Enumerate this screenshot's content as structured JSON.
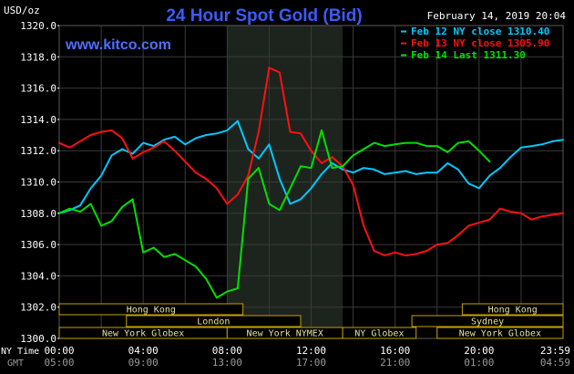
{
  "header": {
    "units": "USD/oz",
    "title": "24 Hour Spot Gold (Bid)",
    "date": "February 14, 2019 20:04",
    "website": "www.kitco.com"
  },
  "colors": {
    "background": "#000000",
    "grid": "#3a3a3a",
    "highlight_band": "#1d241d",
    "title": "#3b5bff",
    "website": "#4f70ff",
    "axis_text": "#ffffff",
    "sub_axis_text": "#9a9a9a",
    "market_bar_fill": "#000000",
    "market_bar_stroke": "#c8a000",
    "market_text": "#e6e0a0"
  },
  "time_labels": {
    "row1_label": "NY Time",
    "row2_label": "GMT"
  },
  "chart_data": {
    "type": "line",
    "title": "24 Hour Spot Gold (Bid)",
    "ylabel": "USD/oz",
    "ylim": [
      1300.0,
      1320.0
    ],
    "xlim": [
      0,
      24
    ],
    "yticks": [
      "1300.0",
      "1302.0",
      "1304.0",
      "1306.0",
      "1308.0",
      "1310.0",
      "1312.0",
      "1314.0",
      "1316.0",
      "1318.0",
      "1320.0"
    ],
    "xticks_ny": [
      "00:00",
      "04:00",
      "08:00",
      "12:00",
      "16:00",
      "20:00",
      "23:59"
    ],
    "xticks_gmt": [
      "05:00",
      "09:00",
      "13:00",
      "17:00",
      "21:00",
      "01:00",
      "04:59"
    ],
    "xtick_positions": [
      0,
      4,
      8,
      12,
      16,
      20,
      24
    ],
    "highlight_range": [
      8.0,
      13.5
    ],
    "grid": true,
    "legend_position": "top-right",
    "series": [
      {
        "name": "Feb 12 NY close 1310.40",
        "color": "#00c8ff",
        "x": [
          0,
          0.5,
          1.0,
          1.5,
          2.0,
          2.5,
          3.0,
          3.5,
          4.0,
          4.5,
          5.0,
          5.5,
          6.0,
          6.5,
          7.0,
          7.5,
          8.0,
          8.5,
          9.0,
          9.5,
          10.0,
          10.5,
          11.0,
          11.5,
          12.0,
          12.5,
          13.0,
          13.5,
          14.0,
          14.5,
          15.0,
          15.5,
          16.0,
          16.5,
          17.0,
          17.5,
          18.0,
          18.5,
          19.0,
          19.5,
          20.0,
          20.5,
          21.0,
          21.5,
          22.0,
          22.5,
          23.0,
          23.5,
          24.0
        ],
        "values": [
          1308.0,
          1308.2,
          1308.5,
          1309.6,
          1310.4,
          1311.7,
          1312.1,
          1311.8,
          1312.5,
          1312.3,
          1312.7,
          1312.9,
          1312.4,
          1312.8,
          1313.0,
          1313.1,
          1313.3,
          1313.9,
          1312.1,
          1311.5,
          1312.4,
          1310.2,
          1308.6,
          1308.9,
          1309.6,
          1310.5,
          1311.2,
          1310.8,
          1310.6,
          1310.9,
          1310.8,
          1310.5,
          1310.6,
          1310.7,
          1310.5,
          1310.6,
          1310.6,
          1311.2,
          1310.8,
          1309.9,
          1309.6,
          1310.4,
          1310.9,
          1311.6,
          1312.2,
          1312.3,
          1312.4,
          1312.6,
          1312.7
        ]
      },
      {
        "name": "Feb 13 NY close 1305.90",
        "color": "#ff1010",
        "x": [
          0,
          0.5,
          1.0,
          1.5,
          2.0,
          2.5,
          3.0,
          3.5,
          4.0,
          4.5,
          5.0,
          5.5,
          6.0,
          6.5,
          7.0,
          7.5,
          8.0,
          8.5,
          9.0,
          9.5,
          10.0,
          10.5,
          11.0,
          11.5,
          12.0,
          12.5,
          13.0,
          13.5,
          14.0,
          14.5,
          15.0,
          15.5,
          16.0,
          16.5,
          17.0,
          17.5,
          18.0,
          18.5,
          19.0,
          19.5,
          20.0,
          20.5,
          21.0,
          21.5,
          22.0,
          22.5,
          23.0,
          23.5,
          24.0
        ],
        "values": [
          1312.5,
          1312.2,
          1312.6,
          1313.0,
          1313.2,
          1313.3,
          1312.8,
          1311.5,
          1311.9,
          1312.2,
          1312.6,
          1312.0,
          1311.3,
          1310.6,
          1310.2,
          1309.6,
          1308.6,
          1309.2,
          1310.4,
          1313.2,
          1317.3,
          1317.0,
          1313.2,
          1313.1,
          1312.0,
          1311.2,
          1311.6,
          1311.0,
          1309.8,
          1307.2,
          1305.6,
          1305.3,
          1305.5,
          1305.3,
          1305.4,
          1305.6,
          1306.0,
          1306.1,
          1306.6,
          1307.2,
          1307.4,
          1307.6,
          1308.3,
          1308.1,
          1308.0,
          1307.6,
          1307.8,
          1307.9,
          1308.0
        ]
      },
      {
        "name": "Feb 14 Last 1311.30",
        "color": "#00e000",
        "x": [
          0,
          0.5,
          1.0,
          1.5,
          2.0,
          2.5,
          3.0,
          3.5,
          4.0,
          4.5,
          5.0,
          5.5,
          6.0,
          6.5,
          7.0,
          7.5,
          8.0,
          8.5,
          9.0,
          9.5,
          10.0,
          10.5,
          11.0,
          11.5,
          12.0,
          12.5,
          13.0,
          13.5,
          14.0,
          14.5,
          15.0,
          15.5,
          16.0,
          16.5,
          17.0,
          17.5,
          18.0,
          18.5,
          19.0,
          19.5,
          20.0,
          20.5
        ],
        "values": [
          1308.0,
          1308.3,
          1308.1,
          1308.6,
          1307.2,
          1307.5,
          1308.4,
          1308.9,
          1305.5,
          1305.8,
          1305.2,
          1305.4,
          1305.0,
          1304.6,
          1303.8,
          1302.6,
          1303.0,
          1303.2,
          1310.2,
          1310.9,
          1308.6,
          1308.2,
          1309.6,
          1311.0,
          1310.9,
          1313.3,
          1310.9,
          1311.0,
          1311.7,
          1312.1,
          1312.5,
          1312.3,
          1312.4,
          1312.5,
          1312.5,
          1312.3,
          1312.3,
          1311.9,
          1312.5,
          1312.6,
          1312.0,
          1311.3
        ]
      }
    ]
  },
  "market_sessions": [
    {
      "label": "Hong Kong",
      "row": 1,
      "start": 0,
      "end": 8.75
    },
    {
      "label": "Hong Kong",
      "row": 1,
      "start": 19.2,
      "end": 24
    },
    {
      "label": "London",
      "row": 2,
      "start": 3.2,
      "end": 11.5
    },
    {
      "label": "Sydney",
      "row": 2,
      "start": 16.8,
      "end": 24
    },
    {
      "label": "New York Globex",
      "row": 3,
      "start": 0,
      "end": 8.0
    },
    {
      "label": "New York NYMEX",
      "row": 3,
      "start": 8.0,
      "end": 13.5
    },
    {
      "label": "NY Globex",
      "row": 3,
      "start": 13.5,
      "end": 17.0
    },
    {
      "label": "New York Globex",
      "row": 3,
      "start": 18.0,
      "end": 24
    }
  ]
}
